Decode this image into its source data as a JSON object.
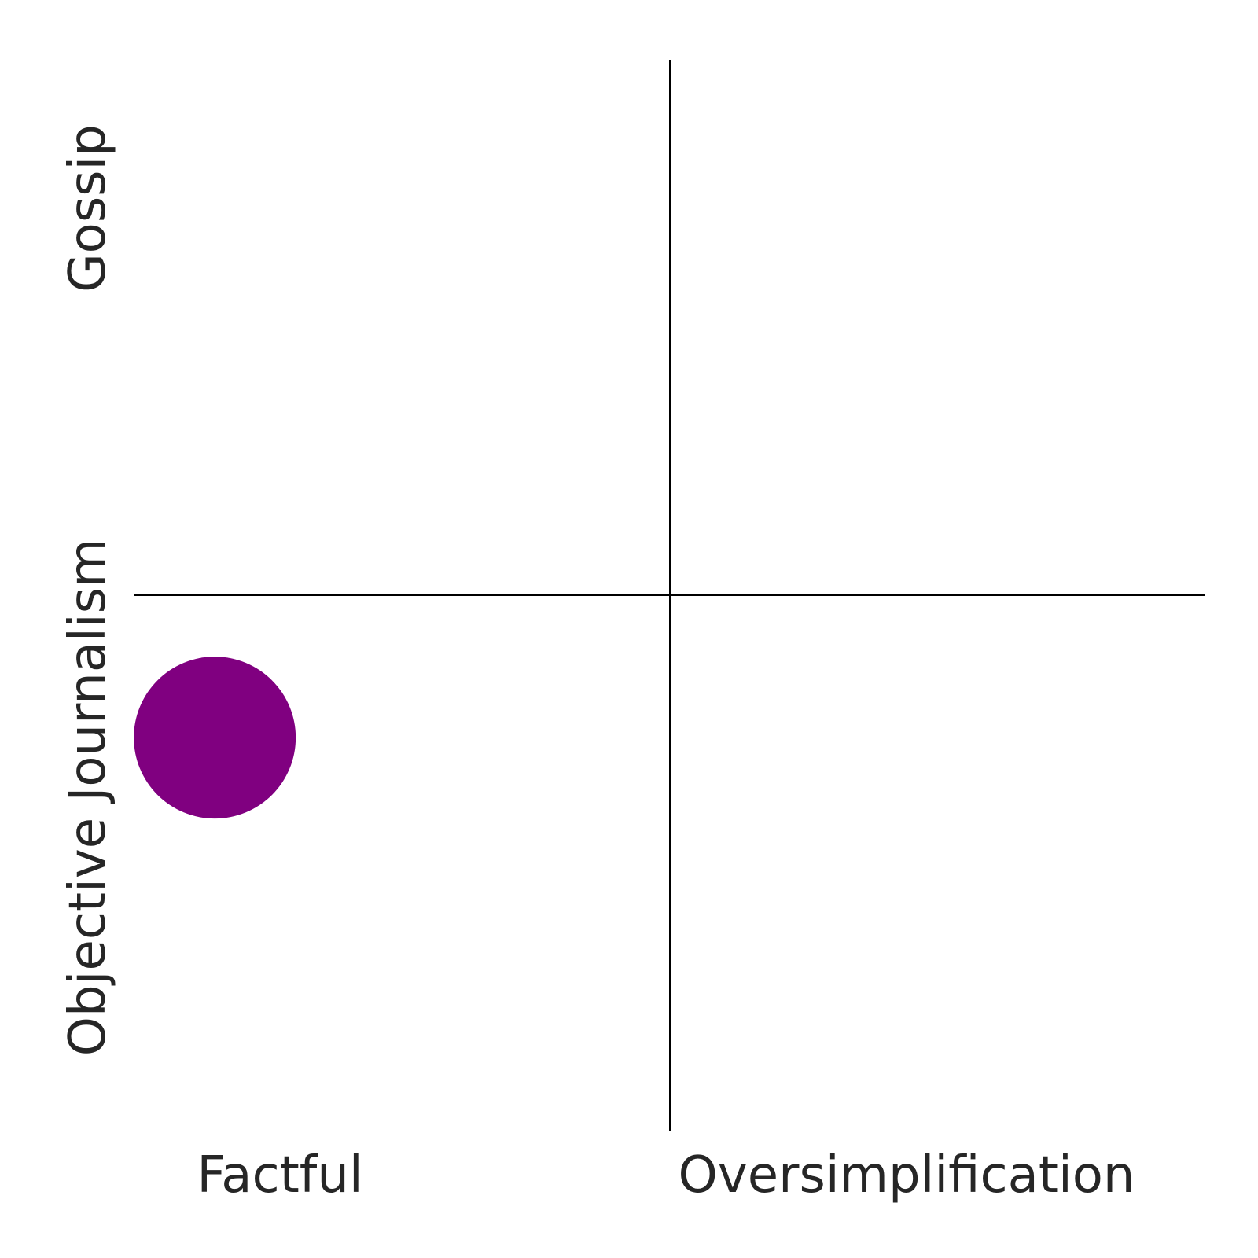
{
  "chart_data": {
    "type": "scatter",
    "title": "",
    "x_labels": [
      "Factful",
      "Oversimplification"
    ],
    "y_labels": [
      "Objective Journalism",
      "Gossip"
    ],
    "xlim": [
      0,
      1
    ],
    "ylim": [
      0,
      1
    ],
    "dividers": {
      "x": 0.5,
      "y": 0.5
    },
    "points": [
      {
        "x": 0.075,
        "y": 0.367,
        "color": "#800080"
      }
    ],
    "grid": false,
    "legend": "none"
  }
}
